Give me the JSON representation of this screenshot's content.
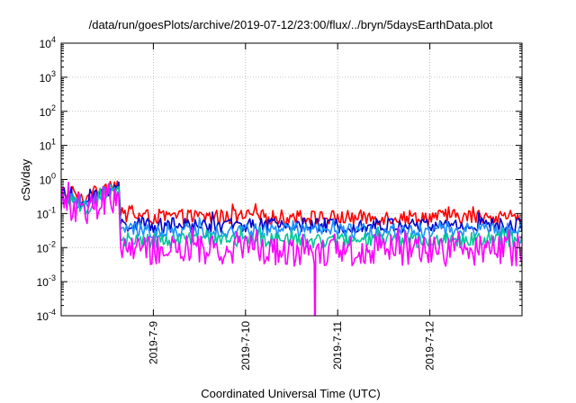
{
  "chart_data": {
    "type": "line",
    "title": "/data/run/goesPlots/archive/2019-07-12/23:00/flux/../bryn/5daysEarthData.plot",
    "xlabel": "Coordinated Universal Time (UTC)",
    "ylabel": "cSv/day",
    "yscale": "log",
    "ylim": [
      0.0001,
      10000
    ],
    "xlim": [
      "2019-07-08",
      "2019-07-13"
    ],
    "grid": true,
    "y_ticks": [
      {
        "base": "10",
        "exp": "-4"
      },
      {
        "base": "10",
        "exp": "-3"
      },
      {
        "base": "10",
        "exp": "-2"
      },
      {
        "base": "10",
        "exp": "-1"
      },
      {
        "base": "10",
        "exp": "0"
      },
      {
        "base": "10",
        "exp": "1"
      },
      {
        "base": "10",
        "exp": "2"
      },
      {
        "base": "10",
        "exp": "3"
      },
      {
        "base": "10",
        "exp": "4"
      }
    ],
    "x_ticks": [
      "2019-7-9",
      "2019-7-10",
      "2019-7-11",
      "2019-7-12"
    ],
    "series": [
      {
        "color": "#ff0000",
        "segments": [
          {
            "x": [
              "2019-07-08T00:00",
              "2019-07-08T06:00",
              "2019-07-08T12:00",
              "2019-07-08T15:00",
              "2019-07-08T15:30",
              "2019-07-09T00:00",
              "2019-07-10T00:00",
              "2019-07-11T00:00",
              "2019-07-12T00:00",
              "2019-07-13T00:00"
            ],
            "y": [
              0.45,
              0.25,
              0.7,
              0.75,
              0.09,
              0.08,
              0.08,
              0.075,
              0.08,
              0.08
            ]
          }
        ]
      },
      {
        "color": "#0000cc",
        "segments": [
          {
            "x": [
              "2019-07-08T00:00",
              "2019-07-08T06:00",
              "2019-07-08T12:00",
              "2019-07-08T15:00",
              "2019-07-08T15:30",
              "2019-07-09T00:00",
              "2019-07-10T00:00",
              "2019-07-11T00:00",
              "2019-07-12T00:00",
              "2019-07-13T00:00"
            ],
            "y": [
              0.38,
              0.2,
              0.55,
              0.58,
              0.05,
              0.045,
              0.045,
              0.045,
              0.045,
              0.045
            ]
          }
        ]
      },
      {
        "color": "#1e90ff",
        "segments": [
          {
            "x": [
              "2019-07-08T00:00",
              "2019-07-08T06:00",
              "2019-07-08T12:00",
              "2019-07-08T15:00",
              "2019-07-08T15:30",
              "2019-07-09T00:00",
              "2019-07-10T00:00",
              "2019-07-11T00:00",
              "2019-07-12T00:00",
              "2019-07-13T00:00"
            ],
            "y": [
              0.33,
              0.17,
              0.45,
              0.48,
              0.035,
              0.03,
              0.032,
              0.03,
              0.032,
              0.032
            ]
          }
        ]
      },
      {
        "color": "#00c896",
        "segments": [
          {
            "x": [
              "2019-07-08T00:00",
              "2019-07-08T06:00",
              "2019-07-08T12:00",
              "2019-07-08T15:00",
              "2019-07-08T15:30",
              "2019-07-09T00:00",
              "2019-07-10T00:00",
              "2019-07-11T00:00",
              "2019-07-12T00:00",
              "2019-07-13T00:00"
            ],
            "y": [
              0.28,
              0.14,
              0.36,
              0.38,
              0.018,
              0.016,
              0.017,
              0.016,
              0.017,
              0.017
            ]
          }
        ]
      },
      {
        "color": "#ff00ff",
        "segments": [
          {
            "x": [
              "2019-07-08T00:00",
              "2019-07-08T06:00",
              "2019-07-08T12:00",
              "2019-07-08T15:00",
              "2019-07-08T15:30",
              "2019-07-09T00:00",
              "2019-07-10T00:00",
              "2019-07-10T17:55",
              "2019-07-10T18:00",
              "2019-07-10T18:10",
              "2019-07-10T18:15",
              "2019-07-11T00:00",
              "2019-07-12T00:00",
              "2019-07-13T00:00"
            ],
            "y": [
              0.22,
              0.1,
              0.28,
              0.3,
              0.01,
              0.008,
              0.008,
              0.008,
              0.0001,
              0.0001,
              0.008,
              0.008,
              0.008,
              0.008
            ]
          }
        ]
      }
    ]
  }
}
